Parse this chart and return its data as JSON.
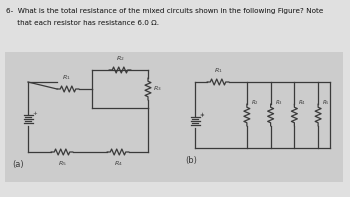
{
  "title_line1": "6-  What is the total resistance of the mixed circuits shown in the following Figure? Note",
  "title_line2": "     that each resistor has resistance 6.0 Ω.",
  "bg_outer": "#c8c8c8",
  "bg_panel": "#d8d8d8",
  "label_a": "(a)",
  "label_b": "(b)",
  "wire_color": "#3a3a3a",
  "text_color": "#111111"
}
